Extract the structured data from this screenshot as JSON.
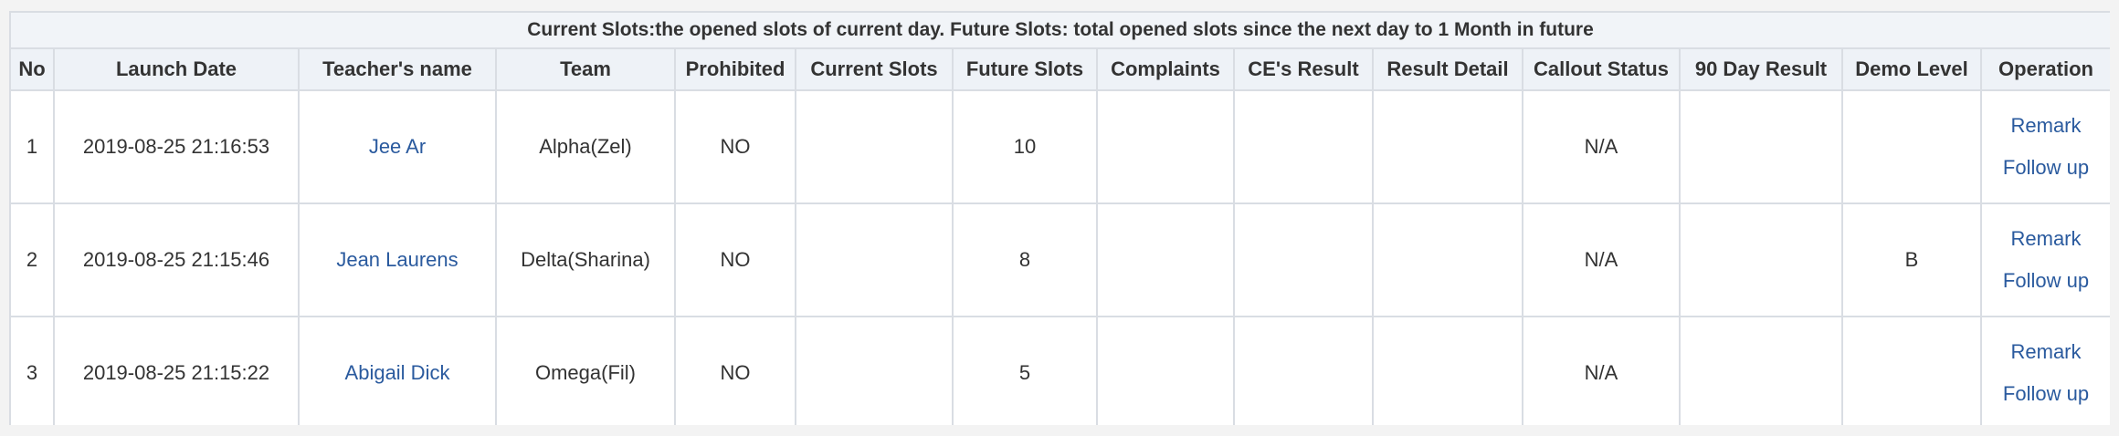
{
  "table": {
    "caption": "Current Slots:the opened slots of current day. Future Slots: total opened slots since the next day to 1 Month in future",
    "columns": [
      "No",
      "Launch Date",
      "Teacher's name",
      "Team",
      "Prohibited",
      "Current Slots",
      "Future Slots",
      "Complaints",
      "CE's Result",
      "Result Detail",
      "Callout Status",
      "90 Day Result",
      "Demo Level",
      "Operation"
    ],
    "rows": [
      {
        "no": "1",
        "launch_date": "2019-08-25 21:16:53",
        "teacher": "Jee Ar",
        "team": "Alpha(Zel)",
        "prohibited": "NO",
        "current_slots": "",
        "future_slots": "10",
        "complaints": "",
        "ce_result": "",
        "result_detail": "",
        "callout_status": "N/A",
        "day90_result": "",
        "demo_level": "",
        "remark_label": "Remark",
        "follow_label": "Follow up"
      },
      {
        "no": "2",
        "launch_date": "2019-08-25 21:15:46",
        "teacher": "Jean Laurens",
        "team": "Delta(Sharina)",
        "prohibited": "NO",
        "current_slots": "",
        "future_slots": "8",
        "complaints": "",
        "ce_result": "",
        "result_detail": "",
        "callout_status": "N/A",
        "day90_result": "",
        "demo_level": "B",
        "remark_label": "Remark",
        "follow_label": "Follow up"
      },
      {
        "no": "3",
        "launch_date": "2019-08-25 21:15:22",
        "teacher": "Abigail Dick",
        "team": "Omega(Fil)",
        "prohibited": "NO",
        "current_slots": "",
        "future_slots": "5",
        "complaints": "",
        "ce_result": "",
        "result_detail": "",
        "callout_status": "N/A",
        "day90_result": "",
        "demo_level": "",
        "remark_label": "Remark",
        "follow_label": "Follow up"
      }
    ]
  },
  "colors": {
    "link": "#2a5a9e",
    "border": "#d9dde3",
    "header_bg": "#eef2f7"
  }
}
